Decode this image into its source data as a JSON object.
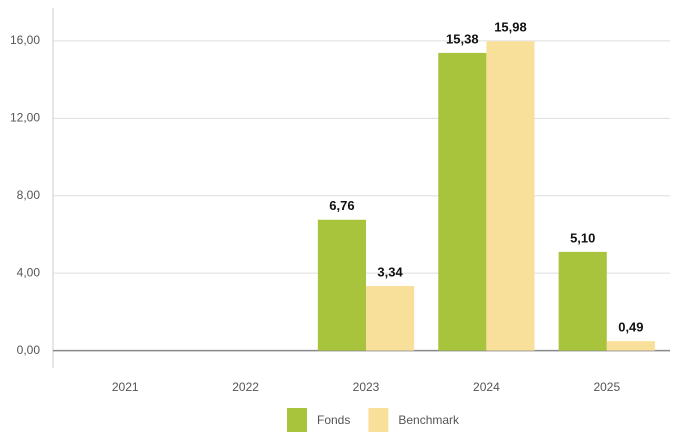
{
  "chart_data": {
    "type": "bar",
    "categories": [
      "2021",
      "2022",
      "2023",
      "2024",
      "2025"
    ],
    "series": [
      {
        "name": "Fonds",
        "color": "#a8c43c",
        "values": [
          null,
          null,
          6.76,
          15.38,
          5.1
        ],
        "value_labels": [
          null,
          null,
          "6,76",
          "15,38",
          "5,10"
        ]
      },
      {
        "name": "Benchmark",
        "color": "#f9e09a",
        "values": [
          null,
          null,
          3.34,
          15.98,
          0.49
        ],
        "value_labels": [
          null,
          null,
          "3,34",
          "15,98",
          "0,49"
        ]
      }
    ],
    "ylim": [
      -0.9,
      17.7
    ],
    "yticks": [
      {
        "value": 0,
        "label": "0,00"
      },
      {
        "value": 4,
        "label": "4,00"
      },
      {
        "value": 8,
        "label": "8,00"
      },
      {
        "value": 12,
        "label": "12,00"
      },
      {
        "value": 16,
        "label": "16,00"
      }
    ],
    "grid": true,
    "legend": "bottom"
  }
}
